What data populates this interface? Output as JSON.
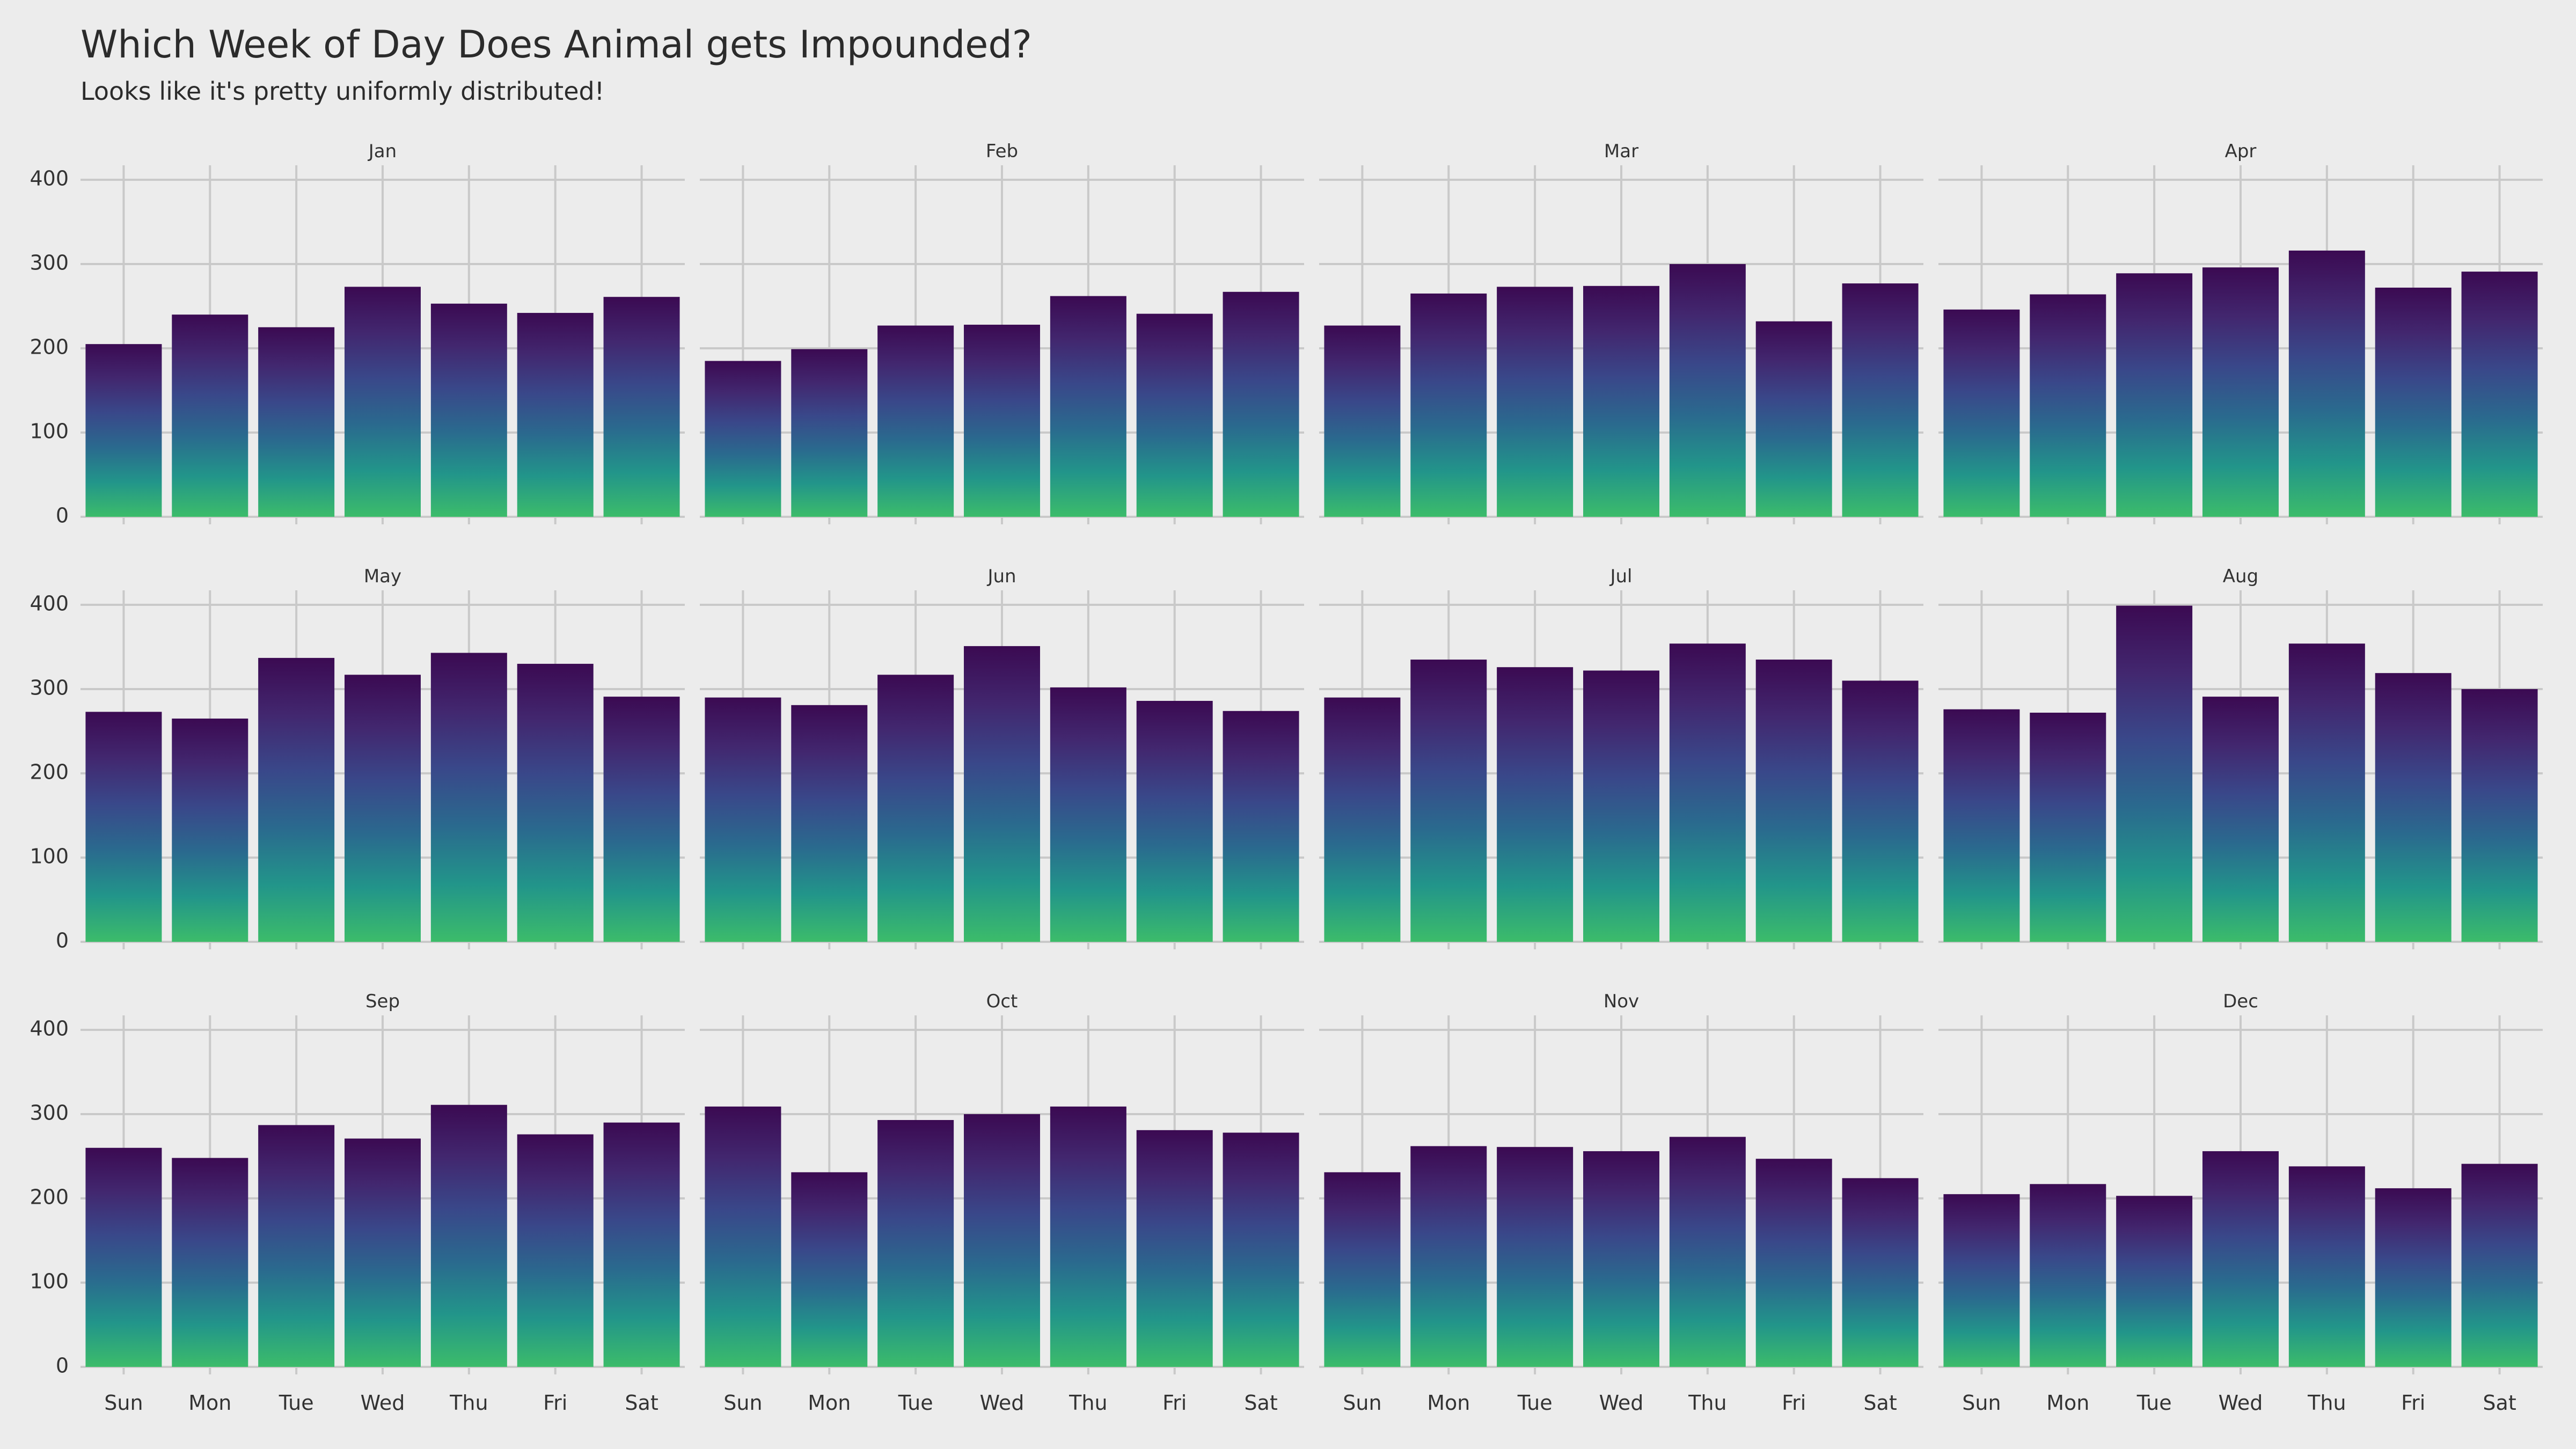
{
  "chart_data": {
    "type": "bar",
    "title": "Which Week of Day Does Animal gets Impounded?",
    "subtitle": "Looks like it's pretty uniformly distributed!",
    "xlabel": "",
    "ylabel": "",
    "ylim": [
      0,
      420
    ],
    "y_ticks": [
      "0",
      "100",
      "200",
      "300",
      "400"
    ],
    "categories": [
      "Sun",
      "Mon",
      "Tue",
      "Wed",
      "Thu",
      "Fri",
      "Sat"
    ],
    "grid": true,
    "fill_gradient": [
      "#3cbc6a",
      "#22958a",
      "#2a6a8e",
      "#39488a",
      "#42276f",
      "#3b0a52"
    ],
    "panels": [
      {
        "name": "Jan",
        "values": [
          205,
          240,
          225,
          273,
          253,
          242,
          261
        ]
      },
      {
        "name": "Feb",
        "values": [
          185,
          199,
          227,
          228,
          262,
          241,
          267
        ]
      },
      {
        "name": "Mar",
        "values": [
          227,
          265,
          273,
          274,
          300,
          232,
          277
        ]
      },
      {
        "name": "Apr",
        "values": [
          246,
          264,
          289,
          296,
          316,
          272,
          291
        ]
      },
      {
        "name": "May",
        "values": [
          273,
          265,
          337,
          317,
          343,
          330,
          291
        ]
      },
      {
        "name": "Jun",
        "values": [
          290,
          281,
          317,
          351,
          302,
          286,
          274
        ]
      },
      {
        "name": "Jul",
        "values": [
          290,
          335,
          326,
          322,
          354,
          335,
          310
        ]
      },
      {
        "name": "Aug",
        "values": [
          276,
          272,
          399,
          291,
          354,
          319,
          300
        ]
      },
      {
        "name": "Sep",
        "values": [
          260,
          248,
          287,
          271,
          311,
          276,
          290
        ]
      },
      {
        "name": "Oct",
        "values": [
          309,
          231,
          293,
          300,
          309,
          281,
          278
        ]
      },
      {
        "name": "Nov",
        "values": [
          231,
          262,
          261,
          256,
          273,
          247,
          224
        ]
      },
      {
        "name": "Dec",
        "values": [
          205,
          217,
          203,
          256,
          238,
          212,
          241
        ]
      }
    ]
  }
}
